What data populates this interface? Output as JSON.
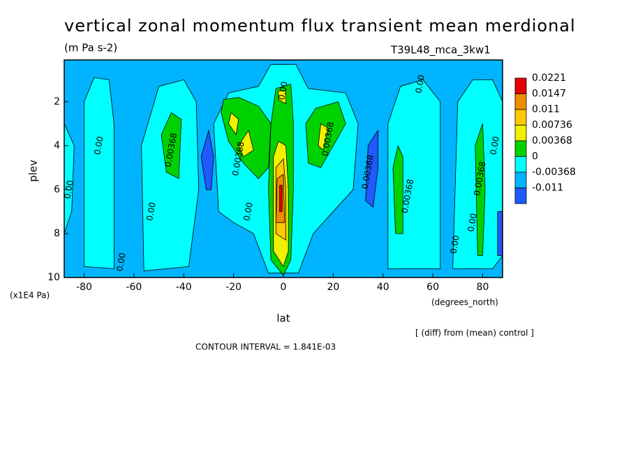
{
  "chart_data": {
    "type": "contour",
    "title": "vertical zonal momentum flux transient mean merdional",
    "subtitle": "(m Pa s-2)",
    "run_name": "T39L48_mca_3kw1",
    "x_label": "lat",
    "x_units": "(degrees_north)",
    "y_label": "plev",
    "y_units": "(x1E4 Pa)",
    "note": "[ (diff) from (mean) control ]",
    "contour_interval": "CONTOUR INTERVAL = 1.841E-03",
    "xlim": [
      -88,
      88
    ],
    "xticks": [
      -80,
      -60,
      -40,
      -20,
      0,
      20,
      40,
      60,
      80
    ],
    "ylim": [
      10,
      0.1
    ],
    "yticks": [
      2,
      4,
      6,
      8,
      10
    ],
    "background_level": -0.00368,
    "levels": [
      0.0221,
      0.0147,
      0.011,
      0.00736,
      0.00368,
      0,
      -0.00368,
      -0.011
    ],
    "level_colors": [
      "#e60000",
      "#f08c00",
      "#ffc800",
      "#f0f000",
      "#00d200",
      "#00ffff",
      "#00b4ff",
      "#1e5aff"
    ],
    "patches": [
      {
        "level": 0,
        "lat": [
          -88,
          -88,
          -84,
          -85
        ],
        "plev": [
          8,
          3,
          4,
          7
        ]
      },
      {
        "level": 0,
        "lat": [
          -80,
          -80,
          -76,
          -70,
          -68,
          -68
        ],
        "plev": [
          9.5,
          2,
          0.9,
          1,
          3,
          9.6
        ]
      },
      {
        "level": 0,
        "lat": [
          -56,
          -57,
          -50,
          -40,
          -35,
          -34,
          -38
        ],
        "plev": [
          9.7,
          4,
          1.3,
          1,
          2,
          6,
          9.5
        ]
      },
      {
        "level": 0,
        "lat": [
          -26,
          -28,
          -22,
          -10,
          -5,
          5,
          10,
          25,
          30,
          28,
          20,
          12,
          6,
          -6,
          -12,
          -20
        ],
        "plev": [
          7,
          3,
          1.6,
          1.3,
          0.3,
          0.3,
          1.4,
          1.6,
          3,
          6,
          7,
          8,
          9.8,
          9.8,
          8,
          7.5
        ]
      },
      {
        "level": 0,
        "lat": [
          42,
          42,
          47,
          56,
          63,
          63
        ],
        "plev": [
          9.6,
          3,
          1.3,
          1,
          2,
          9.6
        ]
      },
      {
        "level": 0,
        "lat": [
          68,
          70,
          76,
          84,
          88,
          88,
          84
        ],
        "plev": [
          9.6,
          2,
          1,
          1,
          2,
          9,
          9.6
        ]
      },
      {
        "level": 0.00368,
        "lat": [
          -47,
          -49,
          -45,
          -41,
          -42
        ],
        "plev": [
          5.2,
          3.5,
          2.5,
          2.8,
          5.5
        ]
      },
      {
        "level": 0.00368,
        "lat": [
          -25,
          -24,
          -18,
          -10,
          -5,
          -6,
          -10,
          -16,
          -22
        ],
        "plev": [
          2.5,
          1.9,
          1.8,
          2.2,
          3,
          5,
          5.5,
          4.8,
          3.8
        ]
      },
      {
        "level": 0.00368,
        "lat": [
          -5,
          -6,
          -5,
          -3,
          3,
          4,
          4,
          3,
          0
        ],
        "plev": [
          9.2,
          6,
          3,
          1.4,
          1.2,
          3,
          6,
          9.2,
          9.9
        ]
      },
      {
        "level": 0.00368,
        "lat": [
          10,
          9,
          13,
          22,
          25,
          20,
          15
        ],
        "plev": [
          4.8,
          3,
          2.3,
          2,
          3,
          4,
          5
        ]
      },
      {
        "level": 0.00368,
        "lat": [
          45,
          44,
          46,
          48,
          48
        ],
        "plev": [
          8,
          5,
          4,
          4.5,
          8
        ]
      },
      {
        "level": 0.00368,
        "lat": [
          78,
          77,
          80,
          81,
          80
        ],
        "plev": [
          9,
          4,
          3,
          6,
          9
        ]
      },
      {
        "level": 0.00736,
        "lat": [
          -22,
          -21,
          -18,
          -19
        ],
        "plev": [
          3,
          2.5,
          2.8,
          3.5
        ]
      },
      {
        "level": 0.00736,
        "lat": [
          -16,
          -18,
          -14,
          -12
        ],
        "plev": [
          4.5,
          4,
          3.3,
          4.2
        ]
      },
      {
        "level": 0.00736,
        "lat": [
          -2,
          -2,
          1,
          1
        ],
        "plev": [
          1.9,
          1.5,
          1.5,
          2.1
        ]
      },
      {
        "level": 0.00736,
        "lat": [
          -4,
          -4,
          -2,
          1,
          2,
          2,
          0
        ],
        "plev": [
          8.8,
          4.5,
          3.8,
          4,
          6,
          8.8,
          9.5
        ]
      },
      {
        "level": 0.00736,
        "lat": [
          14,
          15,
          18,
          16
        ],
        "plev": [
          4,
          3,
          3.2,
          4.2
        ]
      },
      {
        "level": 0.011,
        "lat": [
          -3,
          -3,
          0,
          1,
          1
        ],
        "plev": [
          8,
          5,
          4.6,
          6,
          8.3
        ]
      },
      {
        "level": 0.0147,
        "lat": [
          -3,
          -2.5,
          0,
          0.5
        ],
        "plev": [
          7.5,
          5.5,
          5.3,
          7.5
        ]
      },
      {
        "level": 0.0221,
        "lat": [
          -1.5,
          -1.5,
          -0.5,
          -0.5
        ],
        "plev": [
          7,
          5.8,
          5.8,
          7
        ]
      },
      {
        "level": -0.011,
        "lat": [
          -31,
          -33,
          -30,
          -28,
          -29
        ],
        "plev": [
          6,
          4.5,
          3.3,
          4.5,
          6
        ]
      },
      {
        "level": -0.011,
        "lat": [
          33,
          34,
          38,
          38,
          36
        ],
        "plev": [
          6.5,
          4,
          3.3,
          5,
          6.8
        ]
      },
      {
        "level": -0.011,
        "lat": [
          86,
          86,
          88,
          88
        ],
        "plev": [
          9,
          7,
          7,
          9
        ]
      }
    ],
    "contour_labels": [
      {
        "text": "0.00",
        "lat": -86,
        "plev": 6
      },
      {
        "text": "0.00",
        "lat": -74,
        "plev": 4
      },
      {
        "text": "0.00",
        "lat": -53,
        "plev": 7
      },
      {
        "text": "0.00",
        "lat": -65,
        "plev": 9.3
      },
      {
        "text": "0.00368",
        "lat": -45,
        "plev": 4.2
      },
      {
        "text": "0.00368",
        "lat": -18,
        "plev": 4.6
      },
      {
        "text": "0.00",
        "lat": -14,
        "plev": 7
      },
      {
        "text": "0.00",
        "lat": 0,
        "plev": 1.5
      },
      {
        "text": "0.00",
        "lat": 55,
        "plev": 1.2
      },
      {
        "text": "0.00368",
        "lat": 18,
        "plev": 3.7
      },
      {
        "text": "0.00368",
        "lat": 34,
        "plev": 5.2
      },
      {
        "text": "0.00368",
        "lat": 50,
        "plev": 6.3
      },
      {
        "text": "0.00",
        "lat": 69,
        "plev": 8.5
      },
      {
        "text": "0.00",
        "lat": 76,
        "plev": 7.5
      },
      {
        "text": "0.00368",
        "lat": 79,
        "plev": 5.5
      },
      {
        "text": "0.00",
        "lat": 85,
        "plev": 4
      }
    ]
  }
}
